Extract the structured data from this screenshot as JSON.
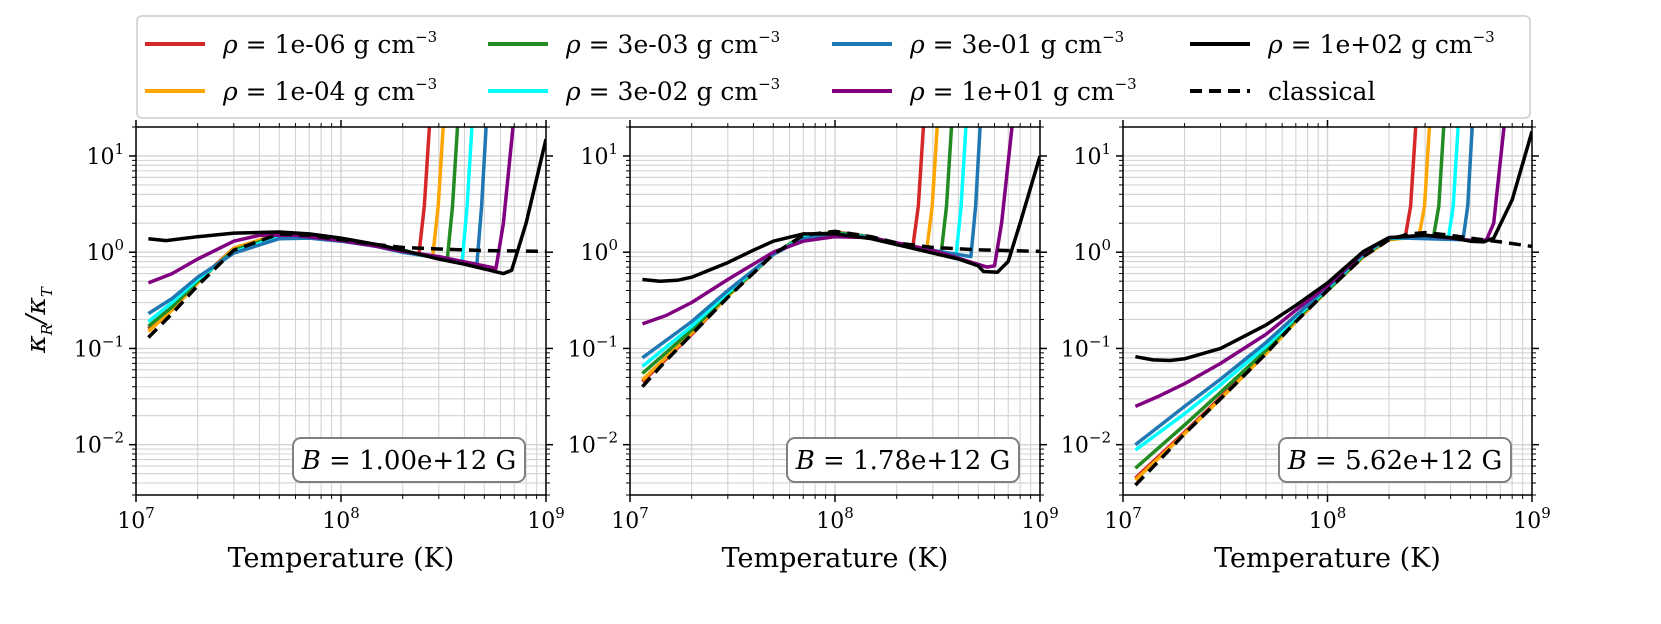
{
  "figure": {
    "ylabel_main": "κ",
    "ylabel_sub1": "R",
    "ylabel_slash": "/κ",
    "ylabel_sub2": "T"
  },
  "legend": {
    "prefix": "ρ = ",
    "unit_text": " g cm",
    "unit_exp": "−3",
    "entries": [
      {
        "value": "1e-06",
        "color": "#d62728",
        "style": "solid"
      },
      {
        "value": "1e-04",
        "color": "#ffa500",
        "style": "solid"
      },
      {
        "value": "3e-03",
        "color": "#228b22",
        "style": "solid"
      },
      {
        "value": "3e-02",
        "color": "#00ffff",
        "style": "solid"
      },
      {
        "value": "3e-01",
        "color": "#1f77b4",
        "style": "solid"
      },
      {
        "value": "1e+01",
        "color": "#800080",
        "style": "solid"
      },
      {
        "value": "1e+02",
        "color": "#000000",
        "style": "solid"
      }
    ],
    "classical": {
      "label": "classical",
      "color": "#000000",
      "style": "dashed"
    }
  },
  "chart_data": [
    {
      "type": "line",
      "panel_label": "B = 1.00e+12 G",
      "xlabel": "Temperature (K)",
      "ylabel": "κR/κT",
      "xscale": "log",
      "yscale": "log",
      "xlim": [
        10000000.0,
        1000000000.0
      ],
      "ylim": [
        0.003,
        20
      ],
      "x_ticks": [
        {
          "base": "10",
          "exp": "7"
        },
        {
          "base": "10",
          "exp": "8"
        },
        {
          "base": "10",
          "exp": "9"
        }
      ],
      "y_ticks": [
        {
          "base": "10",
          "exp": "−2"
        },
        {
          "base": "10",
          "exp": "−1"
        },
        {
          "base": "10",
          "exp": "0"
        },
        {
          "base": "10",
          "exp": "1"
        }
      ],
      "series": [
        {
          "name": "ρ = 1e-06 g cm−3",
          "color": "#d62728",
          "x": [
            11500000.0,
            15000000.0,
            20000000.0,
            30000000.0,
            50000000.0,
            70000000.0,
            100000000.0,
            150000000.0,
            200000000.0,
            240000000.0,
            255000000.0,
            270000000.0
          ],
          "y": [
            0.16,
            0.26,
            0.5,
            1.1,
            1.55,
            1.5,
            1.35,
            1.15,
            1.0,
            0.95,
            3.0,
            20
          ]
        },
        {
          "name": "ρ = 1e-04 g cm−3",
          "color": "#ffa500",
          "x": [
            11500000.0,
            15000000.0,
            20000000.0,
            30000000.0,
            50000000.0,
            70000000.0,
            100000000.0,
            150000000.0,
            200000000.0,
            280000000.0,
            298000000.0,
            315000000.0
          ],
          "y": [
            0.15,
            0.25,
            0.48,
            1.1,
            1.55,
            1.5,
            1.35,
            1.15,
            1.0,
            0.9,
            3.0,
            20
          ]
        },
        {
          "name": "ρ = 3e-03 g cm−3",
          "color": "#228b22",
          "x": [
            11500000.0,
            15000000.0,
            20000000.0,
            30000000.0,
            50000000.0,
            70000000.0,
            100000000.0,
            150000000.0,
            200000000.0,
            330000000.0,
            350000000.0,
            370000000.0
          ],
          "y": [
            0.17,
            0.27,
            0.5,
            1.05,
            1.5,
            1.45,
            1.33,
            1.15,
            1.0,
            0.85,
            3.0,
            20
          ]
        },
        {
          "name": "ρ = 3e-02 g cm−3",
          "color": "#00ffff",
          "x": [
            11500000.0,
            15000000.0,
            20000000.0,
            30000000.0,
            50000000.0,
            70000000.0,
            100000000.0,
            150000000.0,
            200000000.0,
            390000000.0,
            412000000.0,
            435000000.0
          ],
          "y": [
            0.19,
            0.3,
            0.52,
            1.0,
            1.45,
            1.42,
            1.32,
            1.15,
            1.0,
            0.8,
            3.0,
            20
          ]
        },
        {
          "name": "ρ = 3e-01 g cm−3",
          "color": "#1f77b4",
          "x": [
            11500000.0,
            15000000.0,
            20000000.0,
            30000000.0,
            50000000.0,
            70000000.0,
            100000000.0,
            150000000.0,
            200000000.0,
            460000000.0,
            485000000.0,
            510000000.0
          ],
          "y": [
            0.23,
            0.33,
            0.55,
            0.98,
            1.38,
            1.4,
            1.3,
            1.15,
            1.0,
            0.75,
            3.0,
            20
          ]
        },
        {
          "name": "ρ = 1e+01 g cm−3",
          "color": "#800080",
          "x": [
            11500000.0,
            15000000.0,
            20000000.0,
            30000000.0,
            40000000.0,
            60000000.0,
            100000000.0,
            150000000.0,
            200000000.0,
            300000000.0,
            570000000.0,
            620000000.0,
            690000000.0
          ],
          "y": [
            0.48,
            0.6,
            0.85,
            1.3,
            1.5,
            1.5,
            1.32,
            1.15,
            1.02,
            0.9,
            0.68,
            2.0,
            20
          ]
        },
        {
          "name": "ρ = 1e+02 g cm−3",
          "color": "#000000",
          "x": [
            11500000.0,
            14000000.0,
            20000000.0,
            30000000.0,
            50000000.0,
            70000000.0,
            100000000.0,
            150000000.0,
            200000000.0,
            300000000.0,
            400000000.0,
            500000000.0,
            620000000.0,
            680000000.0,
            800000000.0,
            1000000000.0
          ],
          "y": [
            1.38,
            1.32,
            1.45,
            1.58,
            1.62,
            1.55,
            1.4,
            1.2,
            1.05,
            0.85,
            0.75,
            0.67,
            0.6,
            0.65,
            2.0,
            15
          ]
        },
        {
          "name": "classical",
          "color": "#000000",
          "dashed": true,
          "x": [
            11500000.0,
            15000000.0,
            20000000.0,
            30000000.0,
            50000000.0,
            70000000.0,
            100000000.0,
            150000000.0,
            200000000.0,
            300000000.0,
            500000000.0,
            1000000000.0
          ],
          "y": [
            0.13,
            0.23,
            0.45,
            1.05,
            1.55,
            1.5,
            1.35,
            1.2,
            1.12,
            1.08,
            1.04,
            1.02
          ]
        }
      ]
    },
    {
      "type": "line",
      "panel_label": "B = 1.78e+12 G",
      "xlabel": "Temperature (K)",
      "ylabel": "",
      "xscale": "log",
      "yscale": "log",
      "xlim": [
        10000000.0,
        1000000000.0
      ],
      "ylim": [
        0.003,
        20
      ],
      "x_ticks": [
        {
          "base": "10",
          "exp": "7"
        },
        {
          "base": "10",
          "exp": "8"
        },
        {
          "base": "10",
          "exp": "9"
        }
      ],
      "y_ticks": [
        {
          "base": "10",
          "exp": "−2"
        },
        {
          "base": "10",
          "exp": "−1"
        },
        {
          "base": "10",
          "exp": "0"
        },
        {
          "base": "10",
          "exp": "1"
        }
      ],
      "series": [
        {
          "name": "ρ = 1e-06 g cm−3",
          "color": "#d62728",
          "x": [
            11500000.0,
            20000000.0,
            30000000.0,
            50000000.0,
            70000000.0,
            100000000.0,
            150000000.0,
            200000000.0,
            240000000.0,
            255000000.0,
            270000000.0
          ],
          "y": [
            0.045,
            0.14,
            0.35,
            0.95,
            1.45,
            1.62,
            1.45,
            1.2,
            1.15,
            3.0,
            20
          ]
        },
        {
          "name": "ρ = 1e-04 g cm−3",
          "color": "#ffa500",
          "x": [
            11500000.0,
            20000000.0,
            30000000.0,
            50000000.0,
            70000000.0,
            100000000.0,
            150000000.0,
            200000000.0,
            280000000.0,
            298000000.0,
            315000000.0
          ],
          "y": [
            0.047,
            0.145,
            0.35,
            0.95,
            1.45,
            1.6,
            1.45,
            1.2,
            1.05,
            3.0,
            20
          ]
        },
        {
          "name": "ρ = 3e-03 g cm−3",
          "color": "#228b22",
          "x": [
            11500000.0,
            20000000.0,
            30000000.0,
            50000000.0,
            70000000.0,
            100000000.0,
            150000000.0,
            200000000.0,
            330000000.0,
            350000000.0,
            370000000.0
          ],
          "y": [
            0.055,
            0.155,
            0.36,
            0.95,
            1.5,
            1.6,
            1.45,
            1.2,
            1.0,
            3.0,
            20
          ]
        },
        {
          "name": "ρ = 3e-02 g cm−3",
          "color": "#00ffff",
          "x": [
            11500000.0,
            20000000.0,
            30000000.0,
            50000000.0,
            70000000.0,
            100000000.0,
            150000000.0,
            200000000.0,
            390000000.0,
            412000000.0,
            435000000.0
          ],
          "y": [
            0.065,
            0.17,
            0.38,
            0.95,
            1.42,
            1.55,
            1.43,
            1.2,
            0.95,
            3.0,
            20
          ]
        },
        {
          "name": "ρ = 3e-01 g cm−3",
          "color": "#1f77b4",
          "x": [
            11500000.0,
            20000000.0,
            30000000.0,
            50000000.0,
            70000000.0,
            100000000.0,
            150000000.0,
            200000000.0,
            460000000.0,
            485000000.0,
            510000000.0
          ],
          "y": [
            0.08,
            0.19,
            0.4,
            0.95,
            1.38,
            1.5,
            1.42,
            1.2,
            0.9,
            3.0,
            20
          ]
        },
        {
          "name": "ρ = 1e+01 g cm−3",
          "color": "#800080",
          "x": [
            11500000.0,
            15000000.0,
            20000000.0,
            30000000.0,
            50000000.0,
            70000000.0,
            100000000.0,
            150000000.0,
            200000000.0,
            300000000.0,
            550000000.0,
            600000000.0,
            650000000.0,
            730000000.0
          ],
          "y": [
            0.18,
            0.22,
            0.3,
            0.52,
            1.0,
            1.3,
            1.45,
            1.42,
            1.25,
            1.05,
            0.7,
            0.72,
            2.0,
            20
          ]
        },
        {
          "name": "ρ = 1e+02 g cm−3",
          "color": "#000000",
          "x": [
            11500000.0,
            14000000.0,
            17000000.0,
            20000000.0,
            30000000.0,
            40000000.0,
            50000000.0,
            70000000.0,
            100000000.0,
            150000000.0,
            200000000.0,
            300000000.0,
            400000000.0,
            500000000.0,
            530000000.0,
            620000000.0,
            700000000.0,
            800000000.0,
            1000000000.0
          ],
          "y": [
            0.52,
            0.5,
            0.51,
            0.55,
            0.78,
            1.05,
            1.3,
            1.55,
            1.55,
            1.38,
            1.2,
            0.98,
            0.85,
            0.72,
            0.63,
            0.62,
            0.8,
            2.0,
            10
          ]
        },
        {
          "name": "classical",
          "color": "#000000",
          "dashed": true,
          "x": [
            11500000.0,
            15000000.0,
            20000000.0,
            30000000.0,
            50000000.0,
            70000000.0,
            100000000.0,
            150000000.0,
            200000000.0,
            300000000.0,
            500000000.0,
            1000000000.0
          ],
          "y": [
            0.04,
            0.075,
            0.14,
            0.34,
            0.95,
            1.5,
            1.65,
            1.45,
            1.25,
            1.12,
            1.06,
            1.02
          ]
        }
      ]
    },
    {
      "type": "line",
      "panel_label": "B = 5.62e+12 G",
      "xlabel": "Temperature (K)",
      "ylabel": "",
      "xscale": "log",
      "yscale": "log",
      "xlim": [
        10000000.0,
        1000000000.0
      ],
      "ylim": [
        0.003,
        20
      ],
      "x_ticks": [
        {
          "base": "10",
          "exp": "7"
        },
        {
          "base": "10",
          "exp": "8"
        },
        {
          "base": "10",
          "exp": "9"
        }
      ],
      "y_ticks": [
        {
          "base": "10",
          "exp": "−2"
        },
        {
          "base": "10",
          "exp": "−1"
        },
        {
          "base": "10",
          "exp": "0"
        },
        {
          "base": "10",
          "exp": "1"
        }
      ],
      "series": [
        {
          "name": "ρ = 1e-06 g cm−3",
          "color": "#d62728",
          "x": [
            11500000.0,
            20000000.0,
            30000000.0,
            50000000.0,
            70000000.0,
            100000000.0,
            150000000.0,
            200000000.0,
            240000000.0,
            255000000.0,
            270000000.0
          ],
          "y": [
            0.0045,
            0.0135,
            0.031,
            0.09,
            0.19,
            0.4,
            0.9,
            1.35,
            1.45,
            3.0,
            20
          ]
        },
        {
          "name": "ρ = 1e-04 g cm−3",
          "color": "#ffa500",
          "x": [
            11500000.0,
            20000000.0,
            30000000.0,
            50000000.0,
            70000000.0,
            100000000.0,
            150000000.0,
            200000000.0,
            280000000.0,
            298000000.0,
            315000000.0
          ],
          "y": [
            0.0043,
            0.013,
            0.03,
            0.088,
            0.19,
            0.4,
            0.9,
            1.35,
            1.45,
            3.0,
            20
          ]
        },
        {
          "name": "ρ = 3e-03 g cm−3",
          "color": "#228b22",
          "x": [
            11500000.0,
            20000000.0,
            30000000.0,
            50000000.0,
            70000000.0,
            100000000.0,
            150000000.0,
            200000000.0,
            330000000.0,
            350000000.0,
            370000000.0
          ],
          "y": [
            0.0057,
            0.016,
            0.035,
            0.095,
            0.2,
            0.4,
            0.92,
            1.38,
            1.45,
            3.0,
            20
          ]
        },
        {
          "name": "ρ = 3e-02 g cm−3",
          "color": "#00ffff",
          "x": [
            11500000.0,
            20000000.0,
            30000000.0,
            50000000.0,
            70000000.0,
            100000000.0,
            150000000.0,
            200000000.0,
            390000000.0,
            412000000.0,
            435000000.0
          ],
          "y": [
            0.0088,
            0.021,
            0.042,
            0.105,
            0.21,
            0.42,
            0.95,
            1.4,
            1.4,
            3.0,
            20
          ]
        },
        {
          "name": "ρ = 3e-01 g cm−3",
          "color": "#1f77b4",
          "x": [
            11500000.0,
            20000000.0,
            30000000.0,
            50000000.0,
            70000000.0,
            100000000.0,
            150000000.0,
            200000000.0,
            460000000.0,
            485000000.0,
            510000000.0
          ],
          "y": [
            0.01,
            0.025,
            0.048,
            0.115,
            0.22,
            0.43,
            0.97,
            1.42,
            1.35,
            3.0,
            20
          ]
        },
        {
          "name": "ρ = 1e+01 g cm−3",
          "color": "#800080",
          "x": [
            11500000.0,
            15000000.0,
            20000000.0,
            30000000.0,
            50000000.0,
            70000000.0,
            100000000.0,
            150000000.0,
            200000000.0,
            300000000.0,
            550000000.0,
            600000000.0,
            650000000.0,
            730000000.0
          ],
          "y": [
            0.025,
            0.032,
            0.043,
            0.07,
            0.14,
            0.25,
            0.45,
            1.0,
            1.42,
            1.5,
            1.3,
            1.35,
            2.0,
            20
          ]
        },
        {
          "name": "ρ = 1e+02 g cm−3",
          "color": "#000000",
          "x": [
            11500000.0,
            14000000.0,
            17000000.0,
            20000000.0,
            30000000.0,
            50000000.0,
            70000000.0,
            100000000.0,
            150000000.0,
            200000000.0,
            300000000.0,
            400000000.0,
            500000000.0,
            580000000.0,
            650000000.0,
            800000000.0,
            1000000000.0
          ],
          "y": [
            0.082,
            0.076,
            0.075,
            0.078,
            0.1,
            0.175,
            0.28,
            0.48,
            1.02,
            1.42,
            1.5,
            1.42,
            1.3,
            1.28,
            1.4,
            3.5,
            18
          ]
        },
        {
          "name": "classical",
          "color": "#000000",
          "dashed": true,
          "x": [
            11500000.0,
            15000000.0,
            20000000.0,
            30000000.0,
            50000000.0,
            70000000.0,
            100000000.0,
            150000000.0,
            200000000.0,
            250000000.0,
            300000000.0,
            400000000.0,
            500000000.0,
            700000000.0,
            1000000000.0
          ],
          "y": [
            0.0038,
            0.0068,
            0.013,
            0.03,
            0.088,
            0.19,
            0.4,
            0.9,
            1.35,
            1.55,
            1.6,
            1.5,
            1.4,
            1.28,
            1.15
          ]
        }
      ]
    }
  ]
}
